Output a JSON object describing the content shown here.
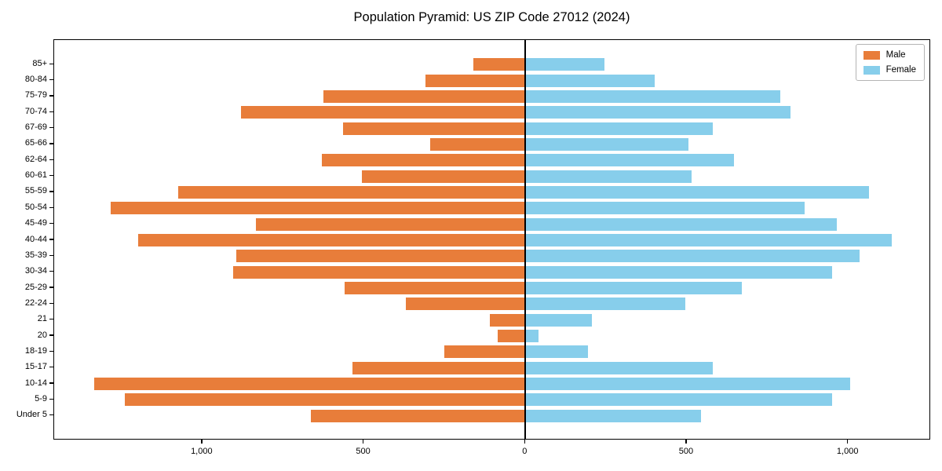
{
  "title": "Population Pyramid: US ZIP Code 27012 (2024)",
  "legend": {
    "position": "upper right",
    "items": [
      {
        "label": "Male",
        "color": "#E87D3A"
      },
      {
        "label": "Female",
        "color": "#87CEEB"
      }
    ]
  },
  "colors": {
    "male_bar": "#E87D3A",
    "female_bar": "#87CEEB",
    "axis": "#000000",
    "background": "#FFFFFF"
  },
  "chart_data": {
    "type": "bar",
    "subtype": "population-pyramid (horizontal, male plotted as negative values on left)",
    "title": "Population Pyramid: US ZIP Code 27012 (2024)",
    "categories_top_to_bottom": [
      "85+",
      "80-84",
      "75-79",
      "70-74",
      "67-69",
      "65-66",
      "62-64",
      "60-61",
      "55-59",
      "50-54",
      "45-49",
      "40-44",
      "35-39",
      "30-34",
      "25-29",
      "22-24",
      "21",
      "20",
      "18-19",
      "15-17",
      "10-14",
      "5-9",
      "Under 5"
    ],
    "series": [
      {
        "name": "Male",
        "values": [
          160,
          310,
          625,
          880,
          565,
          295,
          630,
          505,
          1075,
          1285,
          835,
          1200,
          895,
          905,
          560,
          370,
          110,
          85,
          250,
          535,
          1335,
          1240,
          665
        ]
      },
      {
        "name": "Female",
        "values": [
          245,
          400,
          790,
          820,
          580,
          505,
          645,
          515,
          1065,
          865,
          965,
          1135,
          1035,
          950,
          670,
          495,
          205,
          40,
          195,
          580,
          1005,
          950,
          545
        ]
      }
    ],
    "xlabel": "",
    "ylabel": "",
    "x_ticks": {
      "values": [
        -1000,
        -500,
        0,
        500,
        1000
      ],
      "labels": [
        "1,000",
        "500",
        "0",
        "500",
        "1,000"
      ]
    },
    "xlim": [
      -1459,
      1256
    ],
    "grid": false,
    "legend_position": "upper right",
    "bar_fraction": 0.8
  }
}
